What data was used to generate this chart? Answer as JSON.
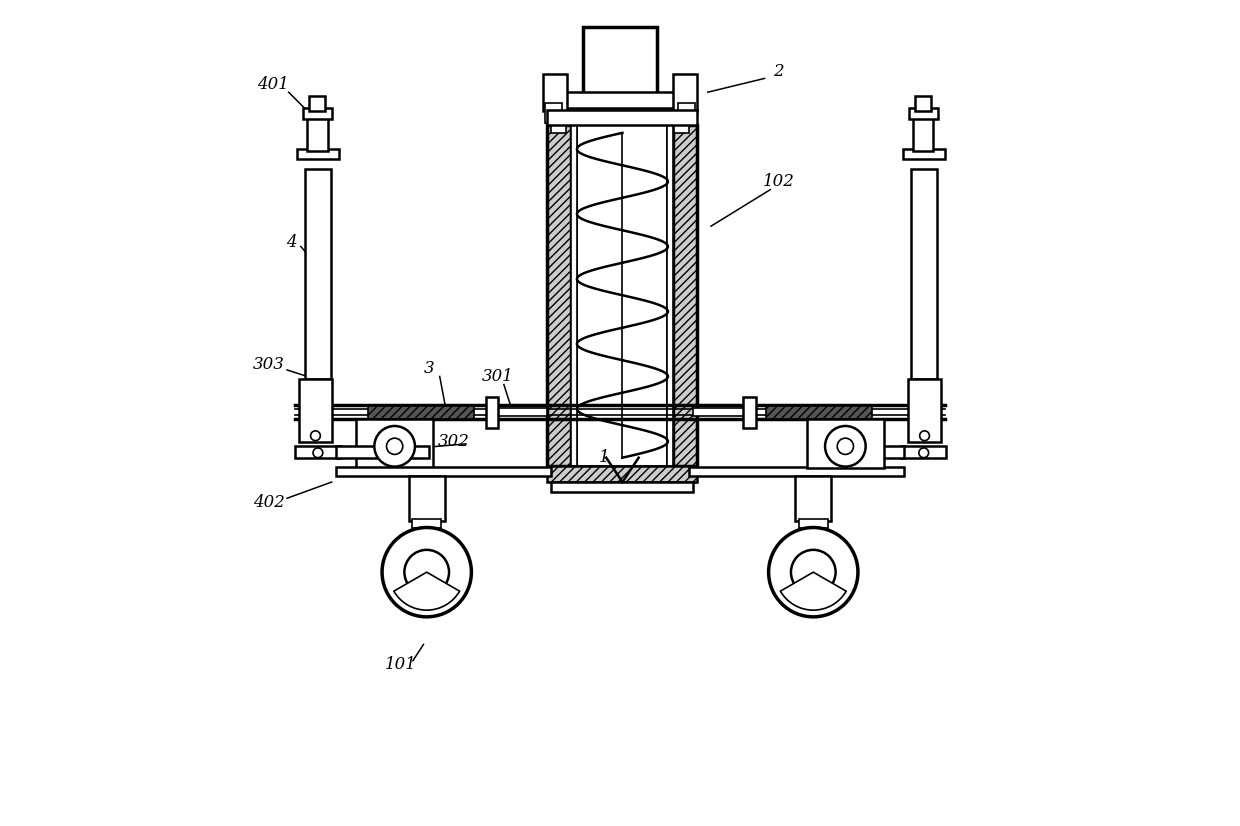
{
  "bg_color": "#ffffff",
  "lw_thick": 2.5,
  "lw_med": 1.8,
  "lw_thin": 1.2,
  "lw_ann": 1.1
}
